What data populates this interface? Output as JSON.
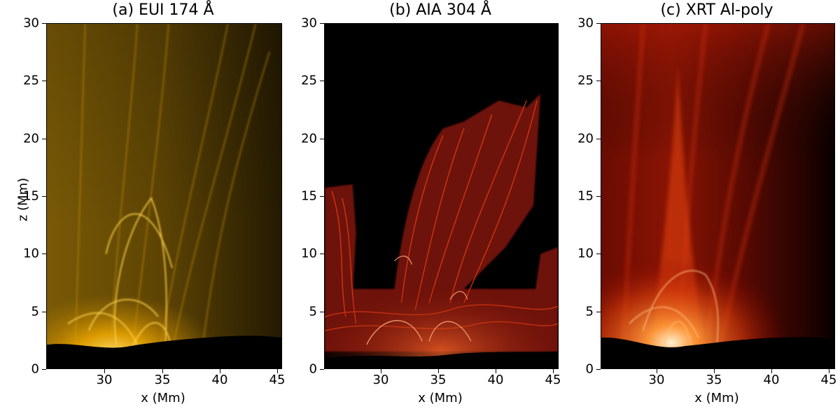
{
  "panels": [
    {
      "id": "a",
      "title": "(a) EUI 174 Å",
      "xlabel": "x (Mm)",
      "ylabel": "z (Mm)",
      "colormap": "gold",
      "accent": "#f2b10a"
    },
    {
      "id": "b",
      "title": "(b) AIA 304 Å",
      "xlabel": "x (Mm)",
      "ylabel": "",
      "colormap": "red-fire",
      "accent": "#e8401a"
    },
    {
      "id": "c",
      "title": "(c) XRT Al-poly",
      "xlabel": "x (Mm)",
      "ylabel": "",
      "colormap": "red-hot",
      "accent": "#ff6a1a"
    }
  ],
  "axes": {
    "x_ticks": [
      "30",
      "35",
      "40",
      "45"
    ],
    "x_tick_values": [
      30,
      35,
      40,
      45
    ],
    "xlim": [
      25,
      45.5
    ],
    "y_ticks": [
      "0",
      "5",
      "10",
      "15",
      "20",
      "25",
      "30"
    ],
    "y_tick_values": [
      0,
      5,
      10,
      15,
      20,
      25,
      30
    ],
    "ylim": [
      0,
      30
    ]
  }
}
